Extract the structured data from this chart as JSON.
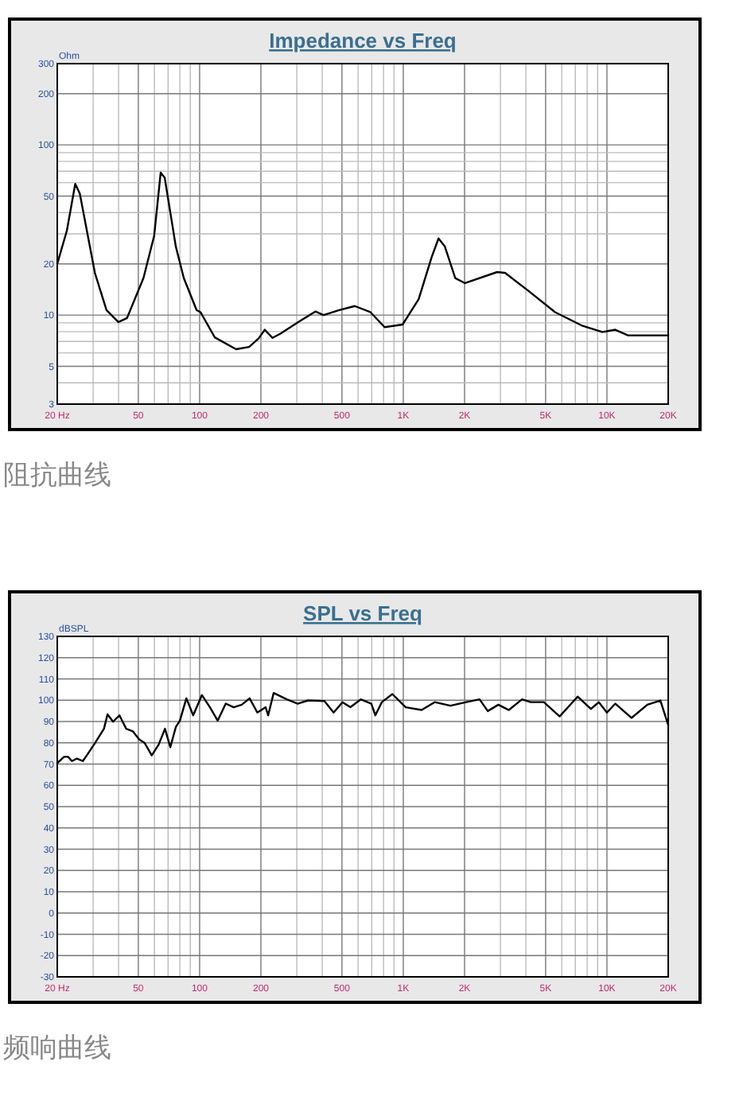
{
  "chart_data": [
    {
      "type": "line",
      "title": "Impedance vs Freq",
      "ylabel": "Ohm",
      "log": "xy",
      "grid": true,
      "annotations": [
        "阻抗曲线"
      ],
      "xlim": [
        20,
        20000
      ],
      "ylim": [
        3,
        300
      ],
      "xticks": [
        {
          "value": 20,
          "label": "20 Hz"
        },
        {
          "value": 30,
          "label": null
        },
        {
          "value": 40,
          "label": null
        },
        50,
        {
          "value": 60,
          "label": null
        },
        {
          "value": 70,
          "label": null
        },
        {
          "value": 80,
          "label": null
        },
        {
          "value": 90,
          "label": null
        },
        100,
        200,
        {
          "value": 300,
          "label": null
        },
        {
          "value": 400,
          "label": null
        },
        500,
        {
          "value": 600,
          "label": null
        },
        {
          "value": 700,
          "label": null
        },
        {
          "value": 800,
          "label": null
        },
        {
          "value": 900,
          "label": null
        },
        {
          "value": 1000,
          "label": "1K"
        },
        {
          "value": 2000,
          "label": "2K"
        },
        {
          "value": 3000,
          "label": null
        },
        {
          "value": 4000,
          "label": null
        },
        {
          "value": 5000,
          "label": "5K"
        },
        {
          "value": 6000,
          "label": null
        },
        {
          "value": 7000,
          "label": null
        },
        {
          "value": 8000,
          "label": null
        },
        {
          "value": 9000,
          "label": null
        },
        {
          "value": 10000,
          "label": "10K"
        },
        {
          "value": 20000,
          "label": "20K"
        }
      ],
      "yticks": [
        3,
        {
          "value": 4,
          "label": null
        },
        5,
        {
          "value": 6,
          "label": null
        },
        {
          "value": 7,
          "label": null
        },
        {
          "value": 8,
          "label": null
        },
        {
          "value": 9,
          "label": null
        },
        10,
        20,
        {
          "value": 30,
          "label": null
        },
        {
          "value": 40,
          "label": null
        },
        50,
        {
          "value": 60,
          "label": null
        },
        {
          "value": 70,
          "label": null
        },
        {
          "value": 80,
          "label": null
        },
        {
          "value": 90,
          "label": null
        },
        100,
        200,
        300
      ],
      "series": [
        {
          "color": "#000000",
          "x": [
            20,
            22.3,
            24.5,
            25.8,
            30.6,
            34.9,
            39.9,
            44,
            53,
            59.8,
            64.4,
            67.4,
            76.4,
            83.6,
            96.6,
            101,
            118.7,
            151,
            175,
            195,
            209,
            228,
            250,
            310,
            371,
            406,
            484,
            578,
            690,
            810,
            992,
            1190,
            1380,
            1490,
            1600,
            1800,
            2010,
            2890,
            3160,
            4140,
            5570,
            7500,
            9500,
            11000,
            12700,
            20000
          ],
          "values": [
            20,
            31.4,
            58.9,
            51.8,
            17.7,
            10.7,
            9.1,
            9.6,
            16.5,
            29.2,
            68.7,
            64,
            25.3,
            16.5,
            10.7,
            10.4,
            7.4,
            6.3,
            6.5,
            7.3,
            8.2,
            7.35,
            7.8,
            9.2,
            10.5,
            10,
            10.7,
            11.3,
            10.4,
            8.5,
            8.8,
            12.4,
            22,
            28.2,
            25.3,
            16.5,
            15.4,
            17.9,
            17.7,
            13.8,
            10.4,
            8.7,
            7.95,
            8.2,
            7.6,
            7.6
          ]
        }
      ]
    },
    {
      "type": "line",
      "title": "SPL vs Freq",
      "ylabel": "dBSPL",
      "log": "x",
      "grid": true,
      "annotations": [
        "频响曲线"
      ],
      "xlim": [
        20,
        20000
      ],
      "ylim": [
        -30,
        130
      ],
      "xticks": [
        {
          "value": 20,
          "label": "20 Hz"
        },
        {
          "value": 30,
          "label": null
        },
        {
          "value": 40,
          "label": null
        },
        50,
        {
          "value": 60,
          "label": null
        },
        {
          "value": 70,
          "label": null
        },
        {
          "value": 80,
          "label": null
        },
        {
          "value": 90,
          "label": null
        },
        100,
        200,
        {
          "value": 300,
          "label": null
        },
        {
          "value": 400,
          "label": null
        },
        500,
        {
          "value": 600,
          "label": null
        },
        {
          "value": 700,
          "label": null
        },
        {
          "value": 800,
          "label": null
        },
        {
          "value": 900,
          "label": null
        },
        {
          "value": 1000,
          "label": "1K"
        },
        {
          "value": 2000,
          "label": "2K"
        },
        {
          "value": 3000,
          "label": null
        },
        {
          "value": 4000,
          "label": null
        },
        {
          "value": 5000,
          "label": "5K"
        },
        {
          "value": 6000,
          "label": null
        },
        {
          "value": 7000,
          "label": null
        },
        {
          "value": 8000,
          "label": null
        },
        {
          "value": 9000,
          "label": null
        },
        {
          "value": 10000,
          "label": "10K"
        },
        {
          "value": 20000,
          "label": "20K"
        }
      ],
      "yticks": [
        -30,
        -20,
        -10,
        0,
        10,
        20,
        30,
        40,
        50,
        60,
        70,
        80,
        90,
        100,
        110,
        120,
        130
      ],
      "series": [
        {
          "color": "#000000",
          "x": [
            20,
            21.6,
            22.6,
            23.6,
            25,
            26.7,
            28.3,
            30.9,
            33.9,
            35.3,
            37.6,
            40.4,
            43.6,
            47,
            50.5,
            53.7,
            58.2,
            62.9,
            67.6,
            71.8,
            76.4,
            80,
            86.1,
            93,
            102.6,
            112.4,
            122.6,
            134.4,
            147,
            161,
            176,
            192,
            211,
            217,
            231,
            268,
            303,
            341,
            410,
            455,
            503,
            550,
            618,
            697,
            729,
            785,
            884,
            1028,
            1231,
            1426,
            1705,
            2038,
            2370,
            2600,
            2930,
            3300,
            3830,
            4220,
            4900,
            5860,
            7180,
            8340,
            9130,
            10000,
            11000,
            13200,
            15800,
            18300,
            20000
          ],
          "values": [
            70.4,
            73.4,
            73.4,
            71.4,
            72.6,
            71.4,
            74.9,
            80.4,
            86.6,
            93.4,
            89.9,
            92.9,
            86.6,
            85.4,
            81.6,
            79.9,
            74.1,
            79.1,
            86.6,
            77.9,
            87.4,
            90.4,
            100.9,
            92.9,
            102.4,
            96.7,
            90.4,
            98.4,
            96.7,
            97.9,
            100.9,
            94.2,
            96.7,
            92.9,
            103.4,
            100.4,
            98.4,
            99.9,
            99.6,
            94.2,
            99.1,
            96.7,
            100.4,
            98.4,
            92.9,
            99.1,
            102.9,
            96.7,
            95.4,
            99.1,
            97.4,
            99.1,
            100.4,
            94.9,
            97.9,
            95.4,
            100.4,
            99.1,
            99.1,
            92.4,
            101.7,
            95.9,
            99.1,
            94.2,
            98.4,
            91.7,
            97.9,
            99.9,
            88.4
          ]
        }
      ]
    }
  ]
}
